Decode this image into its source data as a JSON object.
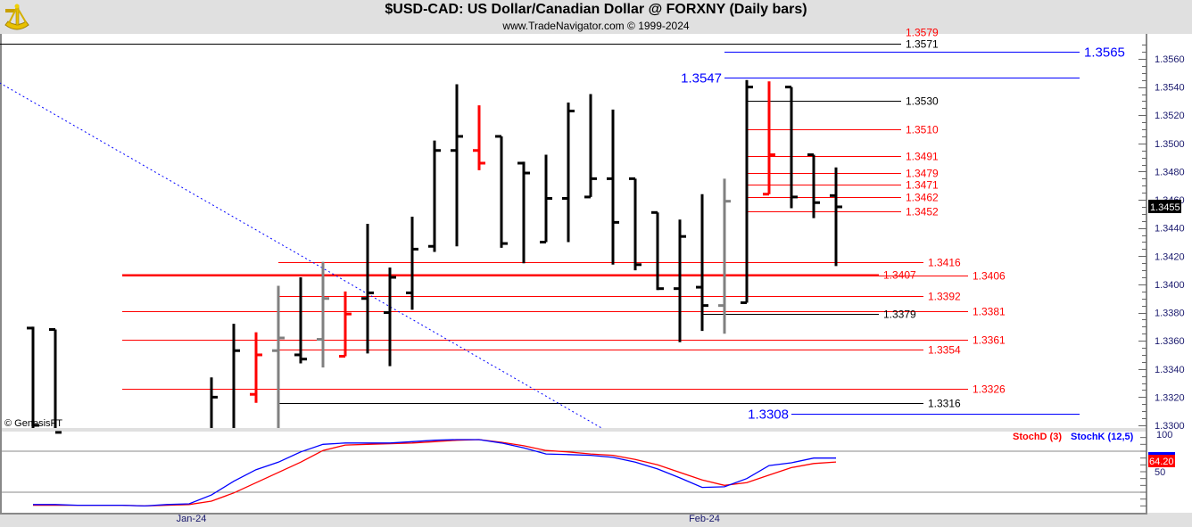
{
  "header": {
    "title": "$USD-CAD:  US Dollar/Canadian Dollar @ FORXNY  (Daily bars)",
    "subtitle": "www.TradeNavigator.com © 1999-2024",
    "logo": "sextant-logo"
  },
  "copyright": "© GenesisFT",
  "colors": {
    "up": "#000000",
    "down": "#ff0000",
    "neutral": "#808080",
    "blue": "#0000ff",
    "axis_text": "#1a1a6e"
  },
  "chart_data": [
    {
      "type": "ohlc",
      "title": "$USD-CAD Daily bars",
      "ylim": [
        1.33,
        1.357
      ],
      "yticks": [
        "1.3300",
        "1.3320",
        "1.3340",
        "1.3360",
        "1.3380",
        "1.3400",
        "1.3420",
        "1.3440",
        "1.3460",
        "1.3480",
        "1.3500",
        "1.3520",
        "1.3540",
        "1.3560"
      ],
      "xlabels": [
        {
          "label": "Jan-24",
          "day": 7.1
        },
        {
          "label": "Feb-24",
          "day": 30.1
        }
      ],
      "last_price": "1.3455",
      "bars": [
        {
          "day": 0,
          "o": 1.3369,
          "h": 1.337,
          "l": 1.329,
          "c": 1.33,
          "color": "up"
        },
        {
          "day": 1,
          "o": 1.3368,
          "h": 1.3368,
          "l": 1.329,
          "c": 1.3295,
          "color": "up"
        },
        {
          "day": 8,
          "o": null,
          "h": 1.3334,
          "l": 1.329,
          "c": 1.332,
          "color": "up"
        },
        {
          "day": 9,
          "o": null,
          "h": 1.3372,
          "l": 1.329,
          "c": 1.3353,
          "color": "up"
        },
        {
          "day": 10,
          "o": 1.3322,
          "h": 1.3366,
          "l": 1.3316,
          "c": 1.335,
          "color": "down"
        },
        {
          "day": 11,
          "o": 1.3353,
          "h": 1.3399,
          "l": 1.329,
          "c": 1.3362,
          "color": "neutral"
        },
        {
          "day": 12,
          "o": 1.335,
          "h": 1.3405,
          "l": 1.3344,
          "c": 1.3347,
          "color": "up"
        },
        {
          "day": 13,
          "o": 1.3361,
          "h": 1.3416,
          "l": 1.3341,
          "c": 1.339,
          "color": "neutral"
        },
        {
          "day": 14,
          "o": 1.3349,
          "h": 1.3395,
          "l": 1.3349,
          "c": 1.3379,
          "color": "down"
        },
        {
          "day": 15,
          "o": 1.339,
          "h": 1.3443,
          "l": 1.3351,
          "c": 1.3394,
          "color": "up"
        },
        {
          "day": 16,
          "o": 1.338,
          "h": 1.3412,
          "l": 1.3342,
          "c": 1.3405,
          "color": "up"
        },
        {
          "day": 17,
          "o": 1.3394,
          "h": 1.3448,
          "l": 1.3382,
          "c": 1.3425,
          "color": "up"
        },
        {
          "day": 18,
          "o": 1.3427,
          "h": 1.3502,
          "l": 1.3423,
          "c": 1.3495,
          "color": "up"
        },
        {
          "day": 19,
          "o": 1.3495,
          "h": 1.3542,
          "l": 1.3427,
          "c": 1.3505,
          "color": "up"
        },
        {
          "day": 20,
          "o": 1.3495,
          "h": 1.3527,
          "l": 1.3481,
          "c": 1.3486,
          "color": "down"
        },
        {
          "day": 21,
          "o": 1.3505,
          "h": 1.3505,
          "l": 1.3426,
          "c": 1.3429,
          "color": "up"
        },
        {
          "day": 22,
          "o": 1.3486,
          "h": 1.3487,
          "l": 1.3415,
          "c": 1.3479,
          "color": "up"
        },
        {
          "day": 23,
          "o": 1.343,
          "h": 1.3492,
          "l": 1.343,
          "c": 1.3461,
          "color": "up"
        },
        {
          "day": 24,
          "o": 1.3461,
          "h": 1.3529,
          "l": 1.343,
          "c": 1.3523,
          "color": "up"
        },
        {
          "day": 25,
          "o": 1.3462,
          "h": 1.3535,
          "l": 1.3462,
          "c": 1.3475,
          "color": "up"
        },
        {
          "day": 26,
          "o": 1.3475,
          "h": 1.3524,
          "l": 1.3414,
          "c": 1.3444,
          "color": "up"
        },
        {
          "day": 27,
          "o": 1.3475,
          "h": 1.3475,
          "l": 1.341,
          "c": 1.3414,
          "color": "up"
        },
        {
          "day": 28,
          "o": 1.3451,
          "h": 1.3451,
          "l": 1.3396,
          "c": 1.3397,
          "color": "up"
        },
        {
          "day": 29,
          "o": 1.3397,
          "h": 1.3446,
          "l": 1.3359,
          "c": 1.3434,
          "color": "up"
        },
        {
          "day": 30,
          "o": 1.3398,
          "h": 1.3464,
          "l": 1.3367,
          "c": 1.3385,
          "color": "up"
        },
        {
          "day": 31,
          "o": 1.3385,
          "h": 1.3475,
          "l": 1.3365,
          "c": 1.3459,
          "color": "neutral"
        },
        {
          "day": 32,
          "o": 1.3387,
          "h": 1.3545,
          "l": 1.3387,
          "c": 1.354,
          "color": "up"
        },
        {
          "day": 33,
          "o": 1.3464,
          "h": 1.3544,
          "l": 1.3464,
          "c": 1.3492,
          "color": "down"
        },
        {
          "day": 34,
          "o": 1.354,
          "h": 1.354,
          "l": 1.3454,
          "c": 1.3462,
          "color": "up"
        },
        {
          "day": 35,
          "o": 1.3492,
          "h": 1.3492,
          "l": 1.3447,
          "c": 1.3458,
          "color": "up"
        },
        {
          "day": 36,
          "o": 1.3463,
          "h": 1.3483,
          "l": 1.3413,
          "c": 1.3455,
          "color": "up"
        }
      ],
      "levels": [
        {
          "label": "1.3579",
          "price": 1.3579,
          "color": "red"
        },
        {
          "label": "1.3571",
          "price": 1.3571,
          "color": "black"
        },
        {
          "label": "1.3565",
          "price": 1.3565,
          "color": "blue"
        },
        {
          "label": "1.3547",
          "price": 1.3547,
          "color": "blue"
        },
        {
          "label": "1.3530",
          "price": 1.353,
          "color": "black"
        },
        {
          "label": "1.3510",
          "price": 1.351,
          "color": "red"
        },
        {
          "label": "1.3491",
          "price": 1.3491,
          "color": "red"
        },
        {
          "label": "1.3479",
          "price": 1.3479,
          "color": "red"
        },
        {
          "label": "1.3471",
          "price": 1.3471,
          "color": "red"
        },
        {
          "label": "1.3462",
          "price": 1.3462,
          "color": "red"
        },
        {
          "label": "1.3452",
          "price": 1.3452,
          "color": "red"
        },
        {
          "label": "1.3416",
          "price": 1.3416,
          "color": "red"
        },
        {
          "label": "1.3407",
          "price": 1.3407,
          "color": "red"
        },
        {
          "label": "1.3406",
          "price": 1.3406,
          "color": "red"
        },
        {
          "label": "1.3392",
          "price": 1.3392,
          "color": "red"
        },
        {
          "label": "1.3381",
          "price": 1.3381,
          "color": "red"
        },
        {
          "label": "1.3379",
          "price": 1.3379,
          "color": "black"
        },
        {
          "label": "1.3361",
          "price": 1.3361,
          "color": "red"
        },
        {
          "label": "1.3354",
          "price": 1.3354,
          "color": "red"
        },
        {
          "label": "1.3326",
          "price": 1.3326,
          "color": "red"
        },
        {
          "label": "1.3316",
          "price": 1.3316,
          "color": "black"
        },
        {
          "label": "1.3308",
          "price": 1.3308,
          "color": "blue"
        }
      ],
      "trendline": {
        "style": "dotted",
        "color": "blue",
        "from": {
          "day": -1.5,
          "price": 1.3543
        },
        "to": {
          "day": 25.5,
          "price": 1.3298
        }
      }
    },
    {
      "type": "line",
      "title": "Stochastic",
      "ylim": [
        0,
        100
      ],
      "yticks": [
        "100",
        "50"
      ],
      "gridlines": [
        80,
        20
      ],
      "legend": [
        "StochD (3)",
        "StochK (12,5)"
      ],
      "last_value": "64.20",
      "series": [
        {
          "name": "StochK (12,5)",
          "color": "blue",
          "values": [
            2,
            2,
            1,
            1,
            1,
            0,
            2,
            3,
            16,
            36,
            53,
            64,
            79,
            90,
            92,
            92,
            92,
            94,
            96,
            97,
            97,
            92,
            85,
            76,
            75,
            74,
            71,
            64,
            54,
            41,
            27,
            28,
            40,
            59,
            63,
            70,
            70
          ]
        },
        {
          "name": "StochD (3)",
          "color": "red",
          "values": [
            1,
            1,
            1,
            1,
            1,
            0,
            1,
            2,
            7,
            19,
            34,
            49,
            64,
            81,
            89,
            90,
            91,
            92,
            94,
            96,
            97,
            93,
            88,
            81,
            79,
            76,
            74,
            68,
            60,
            49,
            38,
            30,
            34,
            45,
            56,
            62,
            64.2
          ]
        }
      ]
    }
  ]
}
